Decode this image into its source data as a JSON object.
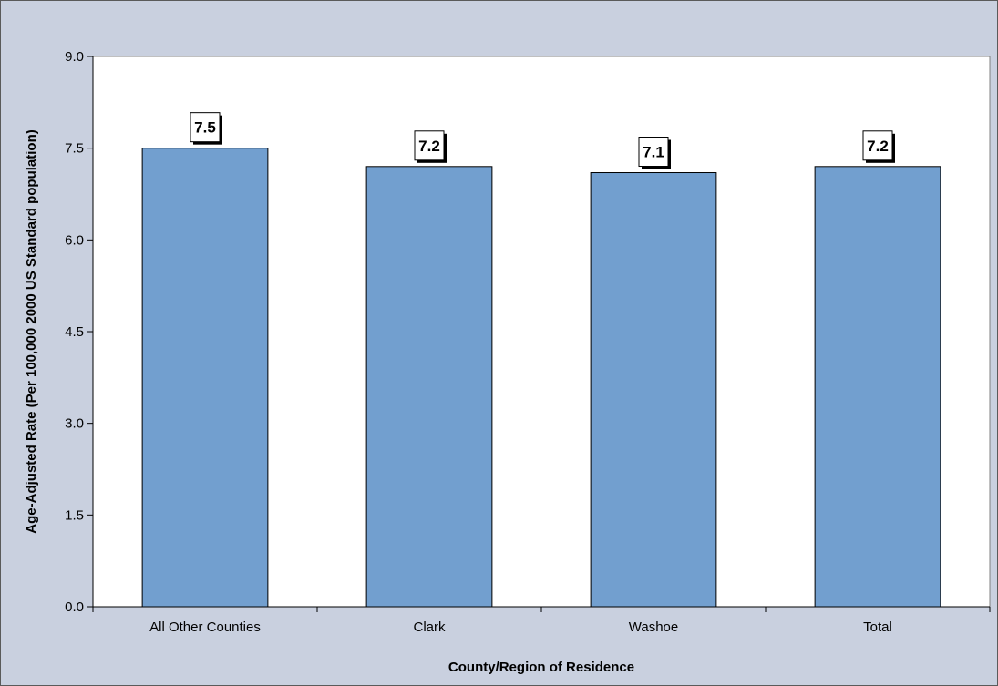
{
  "chart_data": {
    "type": "bar",
    "categories": [
      "All Other Counties",
      "Clark",
      "Washoe",
      "Total"
    ],
    "values": [
      7.5,
      7.2,
      7.1,
      7.2
    ],
    "data_labels": [
      "7.5",
      "7.2",
      "7.1",
      "7.2"
    ],
    "title": "",
    "xlabel": "County/Region of Residence",
    "ylabel": "Age-Adjusted Rate (Per 100,000 2000 US Standard population)",
    "ylim": [
      0,
      9
    ],
    "yticks": [
      "0.0",
      "1.5",
      "3.0",
      "4.5",
      "6.0",
      "7.5",
      "9.0"
    ],
    "grid": true,
    "legend": "none",
    "colors": {
      "bar_fill": "#729fcf",
      "bar_stroke": "#000000",
      "plot_background": "#ffffff",
      "chart_background": "#c9d0df",
      "gridline": "#000000"
    }
  }
}
